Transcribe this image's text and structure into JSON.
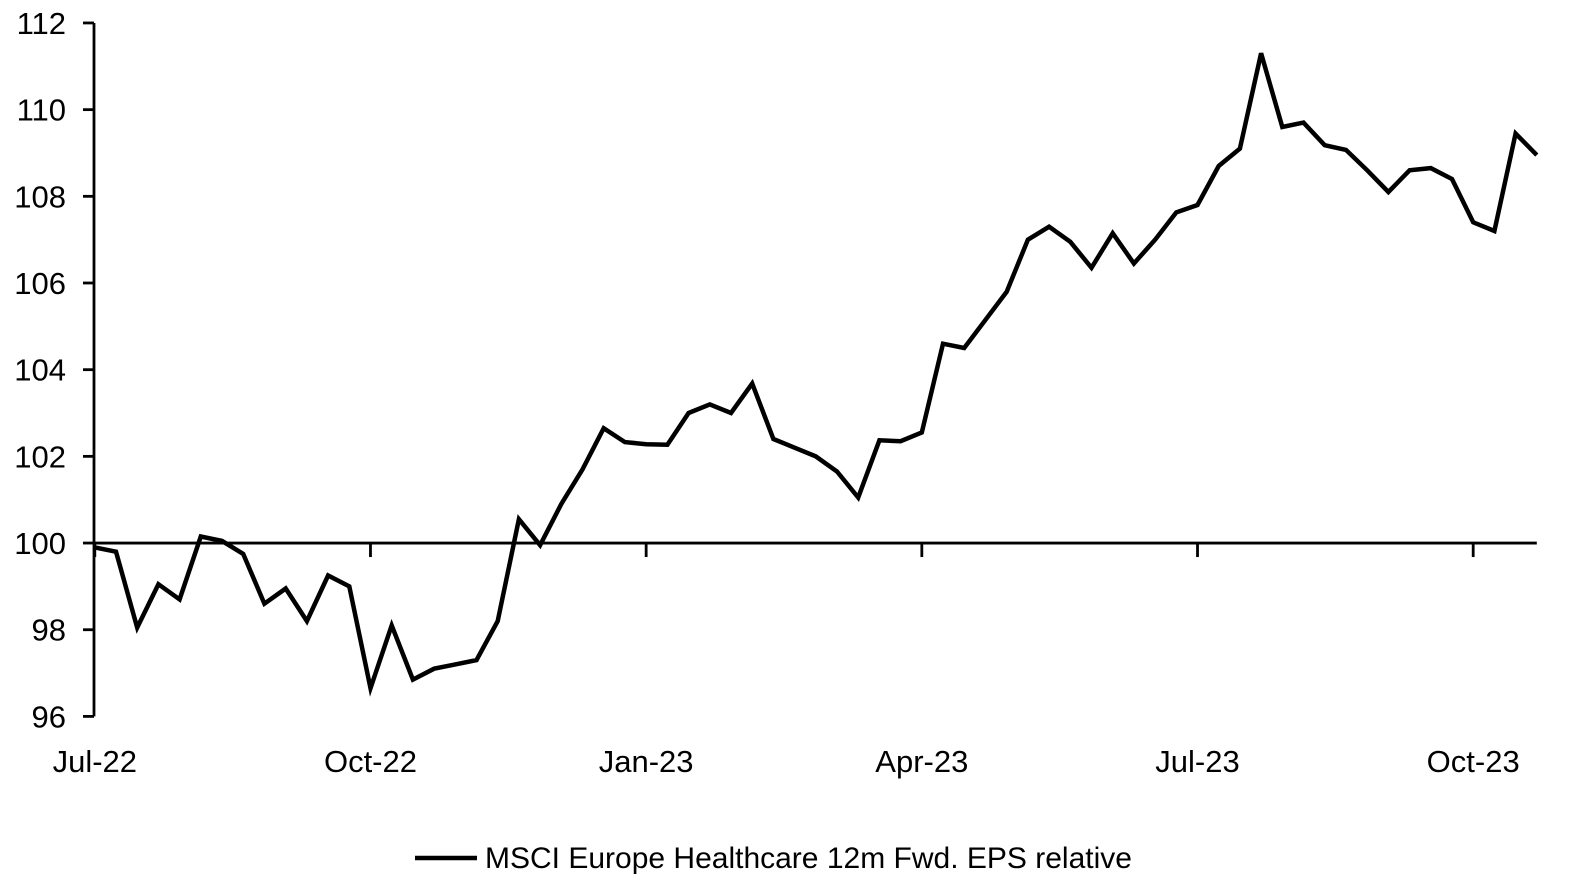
{
  "colors": {
    "background": "#ffffff",
    "line": "#000000",
    "axis": "#000000",
    "text": "#000000"
  },
  "chart_data": {
    "type": "line",
    "title": "",
    "xlabel": "",
    "ylabel": "",
    "grid": false,
    "legend_position": "bottom",
    "ylim": [
      96,
      112
    ],
    "y_ticks": [
      96,
      98,
      100,
      102,
      104,
      106,
      108,
      110,
      112
    ],
    "x_axis_at_value": 100,
    "x_unit": "weeks since Jul-2022",
    "xlim_weeks": [
      0,
      68
    ],
    "x_ticks": [
      {
        "week": 0,
        "label": "Jul-22"
      },
      {
        "week": 13,
        "label": "Oct-22"
      },
      {
        "week": 26,
        "label": "Jan-23"
      },
      {
        "week": 39,
        "label": "Apr-23"
      },
      {
        "week": 52,
        "label": "Jul-23"
      },
      {
        "week": 65,
        "label": "Oct-23"
      }
    ],
    "series": [
      {
        "name": "MSCI Europe Healthcare 12m Fwd. EPS relative",
        "color": "#000000",
        "points": [
          [
            0,
            99.9
          ],
          [
            1,
            99.8
          ],
          [
            2,
            98.05
          ],
          [
            3,
            99.05
          ],
          [
            4,
            98.7
          ],
          [
            5,
            100.15
          ],
          [
            6,
            100.05
          ],
          [
            7,
            99.75
          ],
          [
            8,
            98.6
          ],
          [
            9,
            98.95
          ],
          [
            10,
            98.2
          ],
          [
            11,
            99.25
          ],
          [
            12,
            99.0
          ],
          [
            13,
            96.65
          ],
          [
            14,
            98.1
          ],
          [
            15,
            96.85
          ],
          [
            16,
            97.1
          ],
          [
            17,
            97.2
          ],
          [
            18,
            97.3
          ],
          [
            19,
            98.2
          ],
          [
            20,
            100.55
          ],
          [
            21,
            99.95
          ],
          [
            22,
            100.9
          ],
          [
            23,
            101.7
          ],
          [
            24,
            102.65
          ],
          [
            25,
            102.33
          ],
          [
            26,
            102.28
          ],
          [
            27,
            102.27
          ],
          [
            28,
            103.0
          ],
          [
            29,
            103.2
          ],
          [
            30,
            103.0
          ],
          [
            31,
            103.68
          ],
          [
            32,
            102.4
          ],
          [
            33,
            102.2
          ],
          [
            34,
            102.0
          ],
          [
            35,
            101.65
          ],
          [
            36,
            101.05
          ],
          [
            37,
            102.37
          ],
          [
            38,
            102.35
          ],
          [
            39,
            102.55
          ],
          [
            40,
            104.6
          ],
          [
            41,
            104.5
          ],
          [
            42,
            105.15
          ],
          [
            43,
            105.8
          ],
          [
            44,
            107.0
          ],
          [
            45,
            107.3
          ],
          [
            46,
            106.95
          ],
          [
            47,
            106.35
          ],
          [
            48,
            107.15
          ],
          [
            49,
            106.45
          ],
          [
            50,
            107.0
          ],
          [
            51,
            107.63
          ],
          [
            52,
            107.8
          ],
          [
            53,
            108.7
          ],
          [
            54,
            109.1
          ],
          [
            55,
            111.3
          ],
          [
            56,
            109.6
          ],
          [
            57,
            109.7
          ],
          [
            58,
            109.18
          ],
          [
            59,
            109.07
          ],
          [
            60,
            108.6
          ],
          [
            61,
            108.1
          ],
          [
            62,
            108.6
          ],
          [
            63,
            108.65
          ],
          [
            64,
            108.4
          ],
          [
            65,
            107.4
          ],
          [
            66,
            107.2
          ],
          [
            67,
            109.45
          ],
          [
            68,
            108.95
          ]
        ]
      }
    ]
  }
}
